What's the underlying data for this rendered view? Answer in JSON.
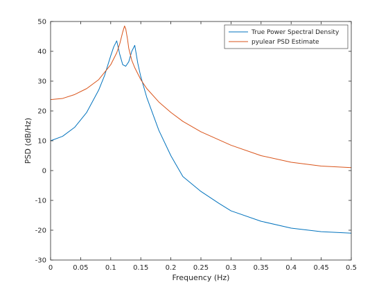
{
  "chart_data": {
    "type": "line",
    "xlabel": "Frequency (Hz)",
    "ylabel": "PSD (dB/Hz)",
    "xlim": [
      0,
      0.5
    ],
    "ylim": [
      -30,
      50
    ],
    "xticks": [
      0,
      0.05,
      0.1,
      0.15,
      0.2,
      0.25,
      0.3,
      0.35,
      0.4,
      0.45,
      0.5
    ],
    "xtick_labels": [
      "0",
      "0.05",
      "0.1",
      "0.15",
      "0.2",
      "0.25",
      "0.3",
      "0.35",
      "0.4",
      "0.45",
      "0.5"
    ],
    "yticks": [
      -30,
      -20,
      -10,
      0,
      10,
      20,
      30,
      40,
      50
    ],
    "ytick_labels": [
      "-30",
      "-20",
      "-10",
      "0",
      "10",
      "20",
      "30",
      "40",
      "50"
    ],
    "grid": false,
    "legend_position": "top-right",
    "series": [
      {
        "name": "True Power Spectral Density",
        "color": "#0072bd",
        "x": [
          0,
          0.02,
          0.04,
          0.06,
          0.08,
          0.09,
          0.1,
          0.105,
          0.11,
          0.115,
          0.12,
          0.125,
          0.13,
          0.135,
          0.14,
          0.145,
          0.15,
          0.16,
          0.18,
          0.2,
          0.22,
          0.25,
          0.28,
          0.3,
          0.35,
          0.4,
          0.45,
          0.5
        ],
        "y": [
          10,
          11.5,
          14.5,
          19.5,
          27,
          32,
          38.5,
          41.5,
          43.5,
          39,
          35.5,
          35,
          36.5,
          40,
          42,
          36,
          31.5,
          24.5,
          13.5,
          5,
          -2,
          -7,
          -11,
          -13.5,
          -17,
          -19.3,
          -20.5,
          -21
        ]
      },
      {
        "name": "pyulear PSD Estimate",
        "color": "#d95319",
        "x": [
          0,
          0.02,
          0.04,
          0.06,
          0.08,
          0.1,
          0.11,
          0.115,
          0.12,
          0.123,
          0.125,
          0.128,
          0.13,
          0.135,
          0.14,
          0.15,
          0.16,
          0.18,
          0.2,
          0.22,
          0.25,
          0.3,
          0.35,
          0.4,
          0.45,
          0.5
        ],
        "y": [
          23.8,
          24.2,
          25.5,
          27.5,
          30.5,
          35.5,
          39.5,
          42.5,
          46.5,
          48.5,
          47.5,
          44,
          41,
          37,
          34.5,
          30.5,
          27.5,
          23,
          19.5,
          16.5,
          13,
          8.5,
          5,
          2.8,
          1.5,
          1
        ]
      }
    ]
  }
}
